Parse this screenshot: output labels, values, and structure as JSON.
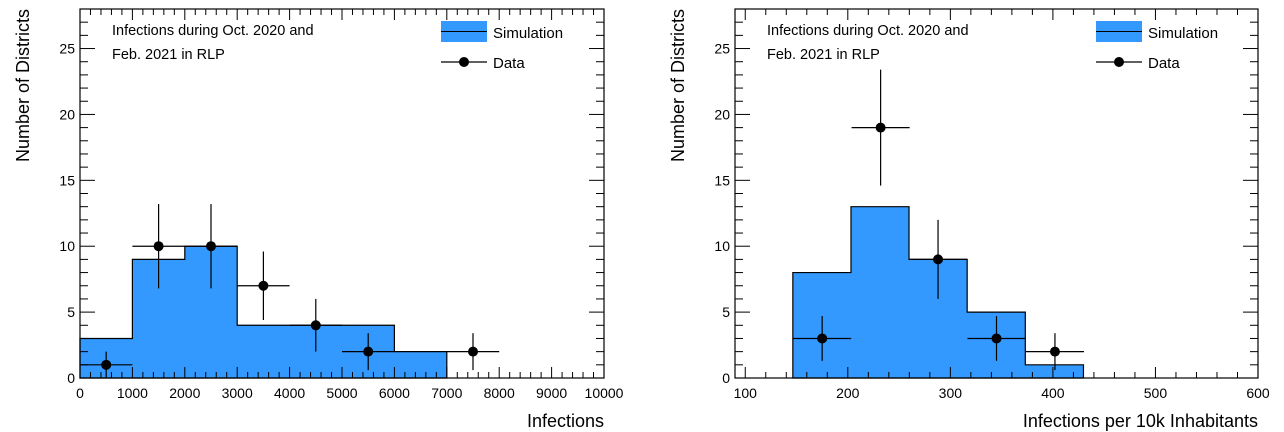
{
  "colors": {
    "simulation_fill": "#3399ff",
    "outline": "#000000",
    "background": "#ffffff"
  },
  "chart_data": [
    {
      "type": "histogram",
      "xlabel": "Infections",
      "ylabel": "Number of Districts",
      "annotation_lines": [
        "Infections during Oct. 2020 and",
        "Feb. 2021 in RLP"
      ],
      "legend": {
        "position": "top-right",
        "simulation_label": "Simulation",
        "data_label": "Data"
      },
      "xlim": [
        0,
        10000
      ],
      "ylim": [
        0,
        28
      ],
      "x_ticks": [
        0,
        1000,
        2000,
        3000,
        4000,
        5000,
        6000,
        7000,
        8000,
        9000,
        10000
      ],
      "x_tick_labels": [
        "0",
        "1000",
        "2000",
        "3000",
        "4000",
        "5000",
        "6000",
        "7000",
        "8000",
        "9000",
        "10000"
      ],
      "y_ticks": [
        0,
        5,
        10,
        15,
        20,
        25
      ],
      "y_tick_labels": [
        "0",
        "5",
        "10",
        "15",
        "20",
        "25"
      ],
      "simulation": {
        "bin_edges": [
          0,
          1000,
          2000,
          3000,
          4000,
          5000,
          6000,
          7000
        ],
        "counts": [
          3,
          9,
          10,
          4,
          4,
          4,
          2
        ]
      },
      "data": {
        "x": [
          500,
          1500,
          2500,
          3500,
          4500,
          5500,
          7500
        ],
        "x_err": [
          500,
          500,
          500,
          500,
          500,
          500,
          500
        ],
        "y": [
          1,
          10,
          10,
          7,
          4,
          2,
          2
        ],
        "y_err_low": [
          1,
          3.2,
          3.2,
          2.6,
          2,
          1.4,
          1.4
        ],
        "y_err_high": [
          1,
          3.2,
          3.2,
          2.6,
          2,
          1.4,
          1.4
        ]
      }
    },
    {
      "type": "histogram",
      "xlabel": "Infections per 10k Inhabitants",
      "ylabel": "Number of Districts",
      "annotation_lines": [
        "Infections during Oct. 2020 and",
        "Feb. 2021 in RLP"
      ],
      "legend": {
        "position": "top-right",
        "simulation_label": "Simulation",
        "data_label": "Data"
      },
      "xlim": [
        90,
        600
      ],
      "ylim": [
        0,
        28
      ],
      "x_ticks": [
        100,
        200,
        300,
        400,
        500,
        600
      ],
      "x_tick_labels": [
        "100",
        "200",
        "300",
        "400",
        "500",
        "600"
      ],
      "y_ticks": [
        0,
        5,
        10,
        15,
        20,
        25
      ],
      "y_tick_labels": [
        "0",
        "5",
        "10",
        "15",
        "20",
        "25"
      ],
      "simulation": {
        "bin_edges": [
          146.4,
          203.1,
          259.7,
          316.4,
          373.1,
          429.8
        ],
        "counts": [
          8,
          13,
          9,
          5,
          1
        ]
      },
      "data": {
        "x": [
          175,
          232,
          288,
          345,
          402
        ],
        "x_err": [
          28.3,
          28.3,
          28.3,
          28.3,
          28.3
        ],
        "y": [
          3,
          19,
          9,
          3,
          2
        ],
        "y_err_low": [
          1.7,
          4.4,
          3,
          1.7,
          1.4
        ],
        "y_err_high": [
          1.7,
          4.4,
          3,
          1.7,
          1.4
        ]
      }
    }
  ]
}
